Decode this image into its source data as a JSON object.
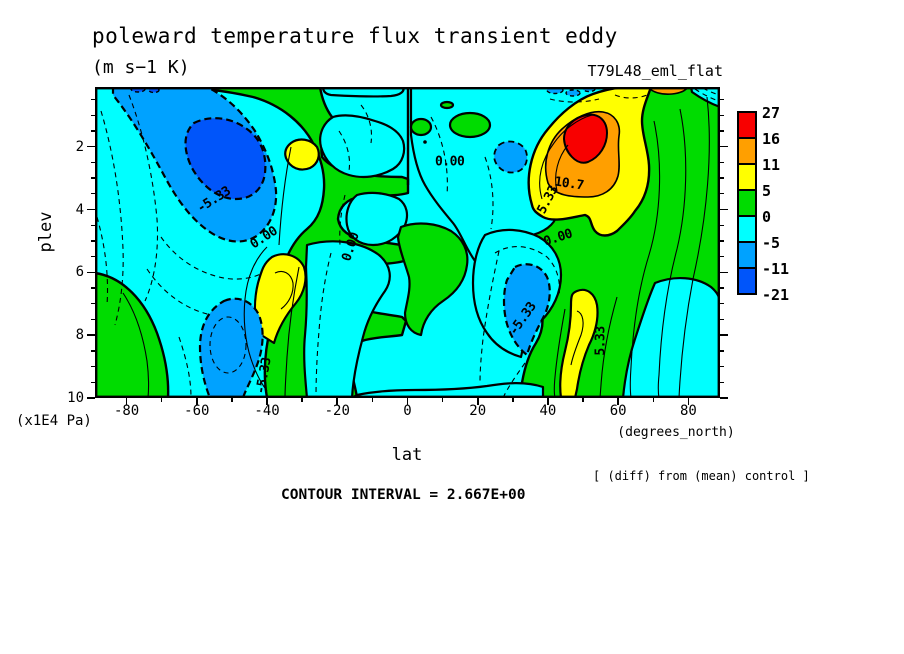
{
  "figure": {
    "title": "poleward temperature flux transient eddy",
    "units": "(m s−1 K)",
    "run_label": "T79L48_eml_flat",
    "note": "[ (diff) from (mean) control ]",
    "contour_interval_text": "CONTOUR INTERVAL = 2.667E+00"
  },
  "axes": {
    "x": {
      "label": "lat",
      "sublabel": "(degrees_north)",
      "tick_labels": [
        "-80",
        "-60",
        "-40",
        "-20",
        "0",
        "20",
        "40",
        "60",
        "80"
      ],
      "tick_values": [
        -80,
        -60,
        -40,
        -20,
        0,
        20,
        40,
        60,
        80
      ],
      "minor_step": 10,
      "range": [
        -89,
        89
      ]
    },
    "y": {
      "label": "plev",
      "sublabel": "(x1E4 Pa)",
      "tick_labels": [
        "2",
        "4",
        "6",
        "8",
        "10"
      ],
      "tick_values": [
        2,
        4,
        6,
        8,
        10
      ],
      "minor_step": 0.5,
      "range": [
        0.1,
        10
      ]
    }
  },
  "colorbar": {
    "cell_colors": [
      "#f80000",
      "#ff9f00",
      "#ffff00",
      "#00dc00",
      "#00ffff",
      "#00a2ff",
      "#0055fa"
    ],
    "labels": [
      "27",
      "16",
      "11",
      "5",
      "0",
      "-5",
      "-11",
      "-21"
    ]
  },
  "chart_data": {
    "type": "heatmap",
    "subtype": "filled contour section (latitude x pressure)",
    "title": "poleward temperature flux transient eddy",
    "units": "m s-1 K",
    "experiment": "T79L48_eml_flat",
    "difference_note": "(diff) from (mean) control",
    "xlabel": "lat (degrees_north)",
    "ylabel": "plev (x1E4 Pa)",
    "x_range": [
      -89,
      89
    ],
    "y_range": [
      0.1,
      10
    ],
    "y_axis_inverted_note": "pressure increases downward",
    "contour_interval": 2.667,
    "labeled_levels": [
      26.67,
      16.0,
      10.67,
      5.33,
      0.0,
      -5.33,
      -10.67,
      -21.33
    ],
    "colorbar_labels": [
      27,
      16,
      11,
      5,
      0,
      -5,
      -11,
      -21
    ],
    "colorbar_colors": [
      "#f80000",
      "#ff9f00",
      "#ffff00",
      "#00dc00",
      "#00ffff",
      "#00a2ff",
      "#0055fa"
    ],
    "line_style": "negative contours dashed, positive solid, thick lines at color boundaries",
    "contour_labels": [
      {
        "text": "-5.33",
        "lat": -55,
        "plev": 3.7,
        "rot": -33
      },
      {
        "text": "0.00",
        "lat": -41,
        "plev": 4.9,
        "rot": -33
      },
      {
        "text": "0.00",
        "lat": -16,
        "plev": 5.2,
        "rot": -72
      },
      {
        "text": "0.00",
        "lat": 12,
        "plev": 2.5,
        "rot": 0
      },
      {
        "text": "10.7",
        "lat": 46,
        "plev": 3.2,
        "rot": 8
      },
      {
        "text": "5.33",
        "lat": 40,
        "plev": 3.7,
        "rot": -62
      },
      {
        "text": "0.00",
        "lat": 43,
        "plev": 4.9,
        "rot": -18
      },
      {
        "text": "-5.33",
        "lat": 33,
        "plev": 7.5,
        "rot": -55
      },
      {
        "text": "5.33",
        "lat": 55,
        "plev": 8.2,
        "rot": -90
      },
      {
        "text": "-5.33",
        "lat": -41,
        "plev": 9.3,
        "rot": -80
      }
    ],
    "features": [
      {
        "region": "NH upper-level warm core",
        "lat": 50,
        "plev": 1.4,
        "value": "> 16, peak ≈ 27 (red)"
      },
      {
        "region": "SH upper-level cold core",
        "lat": -48,
        "plev": 2.4,
        "value": "< -11 (dark blue)"
      },
      {
        "region": "NH mid-level negative cell",
        "lat": 33,
        "plev": 6.8,
        "value": "≈ -8"
      },
      {
        "region": "SH high-lat lower negative cell",
        "lat": -62,
        "plev": 8.5,
        "value": "≈ -8"
      },
      {
        "region": "SH mid-level positive cell",
        "lat": -38,
        "plev": 6.5,
        "value": "≈ 8 (yellow)"
      },
      {
        "region": "NH lower-level positive cell",
        "lat": 52,
        "plev": 8.0,
        "value": "≈ 8 (yellow)"
      },
      {
        "region": "SH upper small positive patch",
        "lat": -27,
        "plev": 2.2,
        "value": "≈ 6 (yellow)"
      },
      {
        "region": "NH polar lower cyan dome",
        "lat": 75,
        "plev": 9.0,
        "value": "≈ -2 (cyan)"
      },
      {
        "region": "top-boundary alternating bands",
        "lat": 0,
        "plev": 0.1,
        "value": "±, incl. orange at -50 and 70"
      }
    ]
  }
}
